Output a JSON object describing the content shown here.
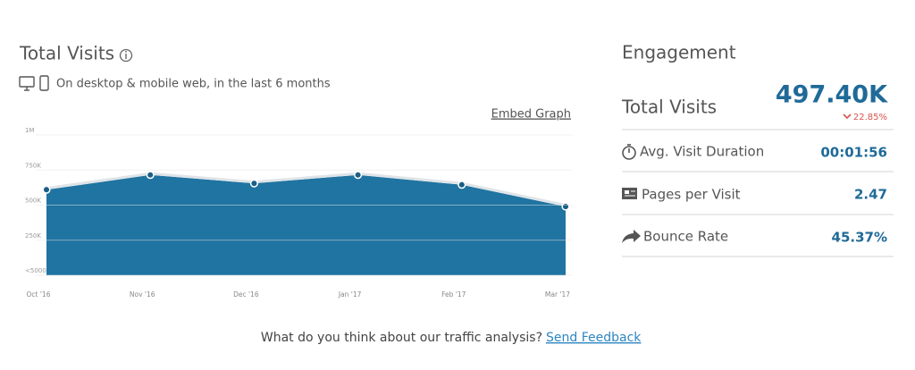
{
  "header": {
    "title": "Total Visits",
    "subtitle": "On desktop & mobile web, in the last 6 months",
    "embed": "Embed Graph"
  },
  "chart_data": {
    "type": "area",
    "categories": [
      "Oct '16",
      "Nov '16",
      "Dec '16",
      "Jan '17",
      "Feb '17",
      "Mar '17"
    ],
    "values": [
      610000,
      715000,
      655000,
      715000,
      645000,
      490000
    ],
    "color": "#1f74a1",
    "ylim": [
      0,
      1000000
    ],
    "yticks": [
      {
        "value": 0,
        "label": "<5000"
      },
      {
        "value": 250000,
        "label": "250K"
      },
      {
        "value": 500000,
        "label": "500K"
      },
      {
        "value": 750000,
        "label": "750K"
      },
      {
        "value": 1000000,
        "label": "1M"
      }
    ],
    "grid": true
  },
  "engagement": {
    "title": "Engagement",
    "total_label": "Total Visits",
    "total_value": "497.40K",
    "change": "22.85%",
    "rows": [
      {
        "label": "Avg. Visit Duration",
        "value": "00:01:56"
      },
      {
        "label": "Pages per Visit",
        "value": "2.47"
      },
      {
        "label": "Bounce Rate",
        "value": "45.37%"
      }
    ]
  },
  "footer": {
    "question": "What do you think about our traffic analysis?",
    "link": "Send Feedback"
  }
}
